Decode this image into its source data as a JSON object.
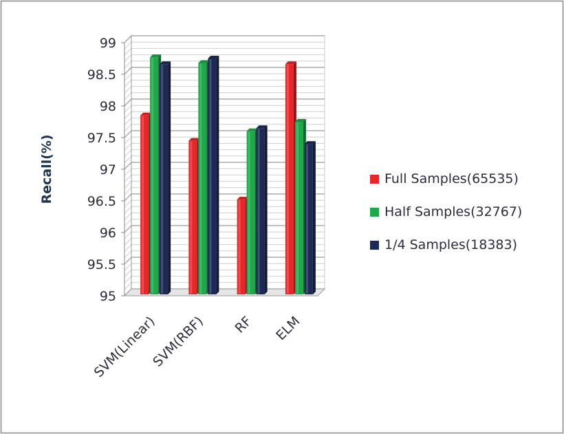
{
  "chart_data": {
    "type": "bar",
    "title": "",
    "xlabel": "",
    "ylabel": "Recall(%)",
    "ylim": [
      95,
      99
    ],
    "yticks": [
      "95",
      "95.5",
      "96",
      "96.5",
      "97",
      "97.5",
      "98",
      "98.5",
      "99"
    ],
    "grid": true,
    "legend_position": "right",
    "categories": [
      "SVM(Linear)",
      "SVM(RBF)",
      "RF",
      "ELM"
    ],
    "series": [
      {
        "name": "Full Samples(65535)",
        "color": "#e8262a",
        "values": [
          97.85,
          97.45,
          96.52,
          98.66
        ]
      },
      {
        "name": "Half Samples(32767)",
        "color": "#1ea84a",
        "values": [
          98.77,
          98.68,
          97.6,
          97.75
        ]
      },
      {
        "name": "1/4 Samples(18383)",
        "color": "#1c2a55",
        "values": [
          98.66,
          98.75,
          97.65,
          97.4
        ]
      }
    ]
  }
}
